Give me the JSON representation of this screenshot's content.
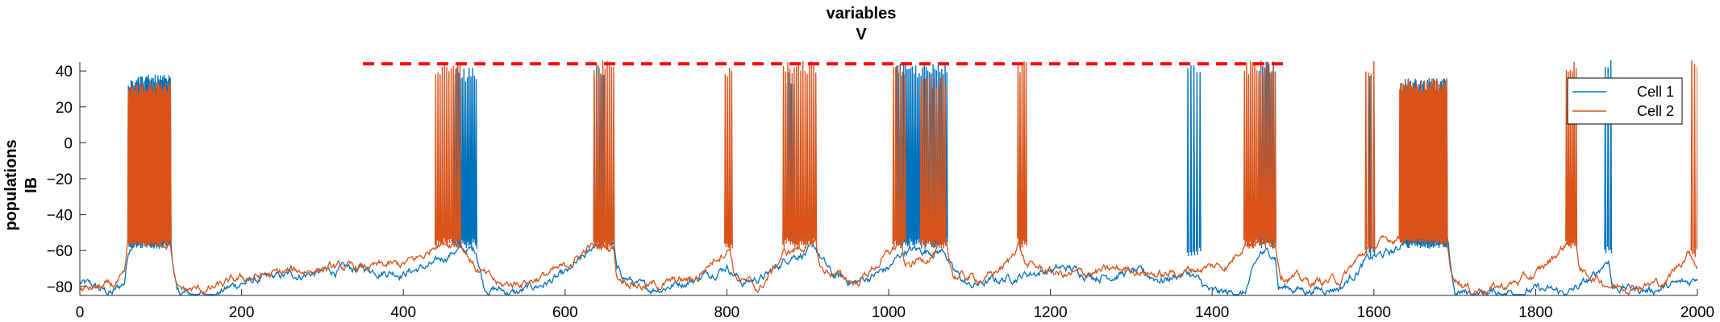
{
  "chart_data": {
    "type": "line",
    "title": [
      "variables",
      "V"
    ],
    "ylabel": [
      "populations",
      "IB"
    ],
    "xlabel": "",
    "xlim": [
      0,
      2000
    ],
    "ylim": [
      -85,
      45
    ],
    "xticks": [
      0,
      200,
      400,
      600,
      800,
      1000,
      1200,
      1400,
      1600,
      1800,
      2000
    ],
    "yticks": [
      -80,
      -60,
      -40,
      -20,
      0,
      20,
      40
    ],
    "grid": false,
    "legend_position": "top-right",
    "reference_line": {
      "style": "dashed",
      "color": "#ff0000",
      "x": [
        350,
        1490
      ],
      "y": 44
    },
    "series": [
      {
        "name": "Cell 1",
        "color": "#0072bd",
        "baseline": [
          [
            0,
            -78
          ],
          [
            40,
            -84
          ],
          [
            55,
            -78
          ],
          [
            60,
            -60
          ],
          [
            66,
            -54
          ],
          [
            112,
            -54
          ],
          [
            116,
            -70
          ],
          [
            120,
            -84
          ],
          [
            160,
            -85
          ],
          [
            200,
            -78
          ],
          [
            260,
            -74
          ],
          [
            300,
            -72
          ],
          [
            350,
            -70
          ],
          [
            400,
            -72
          ],
          [
            440,
            -68
          ],
          [
            462,
            -60
          ],
          [
            490,
            -60
          ],
          [
            500,
            -80
          ],
          [
            540,
            -84
          ],
          [
            600,
            -74
          ],
          [
            630,
            -62
          ],
          [
            638,
            -56
          ],
          [
            660,
            -56
          ],
          [
            664,
            -72
          ],
          [
            700,
            -82
          ],
          [
            760,
            -76
          ],
          [
            800,
            -68
          ],
          [
            820,
            -78
          ],
          [
            850,
            -74
          ],
          [
            880,
            -62
          ],
          [
            910,
            -60
          ],
          [
            930,
            -74
          ],
          [
            960,
            -78
          ],
          [
            1000,
            -70
          ],
          [
            1020,
            -60
          ],
          [
            1070,
            -60
          ],
          [
            1080,
            -72
          ],
          [
            1100,
            -80
          ],
          [
            1140,
            -76
          ],
          [
            1180,
            -72
          ],
          [
            1220,
            -70
          ],
          [
            1260,
            -74
          ],
          [
            1300,
            -72
          ],
          [
            1340,
            -76
          ],
          [
            1370,
            -72
          ],
          [
            1385,
            -78
          ],
          [
            1400,
            -84
          ],
          [
            1440,
            -84
          ],
          [
            1460,
            -62
          ],
          [
            1478,
            -62
          ],
          [
            1482,
            -80
          ],
          [
            1520,
            -82
          ],
          [
            1560,
            -80
          ],
          [
            1590,
            -66
          ],
          [
            1600,
            -64
          ],
          [
            1630,
            -60
          ],
          [
            1635,
            -54
          ],
          [
            1690,
            -54
          ],
          [
            1695,
            -70
          ],
          [
            1700,
            -84
          ],
          [
            1760,
            -83
          ],
          [
            1800,
            -82
          ],
          [
            1840,
            -84
          ],
          [
            1870,
            -76
          ],
          [
            1890,
            -64
          ],
          [
            1895,
            -80
          ],
          [
            1940,
            -82
          ],
          [
            1990,
            -78
          ],
          [
            2000,
            -74
          ]
        ],
        "bursts": [
          {
            "x": [
              60,
              112
            ],
            "n": 62,
            "top": 34,
            "bottom": -55
          },
          {
            "x": [
              462,
              490
            ],
            "n": 14,
            "top": 38,
            "bottom": -55
          },
          {
            "x": [
              636,
              648
            ],
            "n": 5,
            "top": 40,
            "bottom": -52
          },
          {
            "x": [
              873,
              886
            ],
            "n": 5,
            "top": 36,
            "bottom": -52
          },
          {
            "x": [
              1010,
              1072
            ],
            "n": 30,
            "top": 40,
            "bottom": -55
          },
          {
            "x": [
              1370,
              1385
            ],
            "n": 5,
            "top": 43,
            "bottom": -60
          },
          {
            "x": [
              1458,
              1478
            ],
            "n": 10,
            "top": 43,
            "bottom": -55
          },
          {
            "x": [
              1595,
              1600
            ],
            "n": 2,
            "top": 40,
            "bottom": -60
          },
          {
            "x": [
              1634,
              1690
            ],
            "n": 60,
            "top": 32,
            "bottom": -55
          },
          {
            "x": [
              1886,
              1893
            ],
            "n": 3,
            "top": 43,
            "bottom": -58
          }
        ]
      },
      {
        "name": "Cell 2",
        "color": "#d95319",
        "baseline": [
          [
            0,
            -82
          ],
          [
            40,
            -80
          ],
          [
            55,
            -76
          ],
          [
            60,
            -55
          ],
          [
            112,
            -55
          ],
          [
            116,
            -72
          ],
          [
            120,
            -82
          ],
          [
            160,
            -82
          ],
          [
            200,
            -76
          ],
          [
            260,
            -72
          ],
          [
            300,
            -70
          ],
          [
            350,
            -70
          ],
          [
            400,
            -68
          ],
          [
            430,
            -62
          ],
          [
            440,
            -55
          ],
          [
            470,
            -55
          ],
          [
            480,
            -62
          ],
          [
            490,
            -70
          ],
          [
            520,
            -80
          ],
          [
            560,
            -76
          ],
          [
            600,
            -70
          ],
          [
            630,
            -58
          ],
          [
            660,
            -58
          ],
          [
            664,
            -74
          ],
          [
            700,
            -80
          ],
          [
            760,
            -76
          ],
          [
            790,
            -62
          ],
          [
            804,
            -58
          ],
          [
            810,
            -74
          ],
          [
            840,
            -82
          ],
          [
            870,
            -62
          ],
          [
            910,
            -55
          ],
          [
            915,
            -70
          ],
          [
            960,
            -78
          ],
          [
            1000,
            -62
          ],
          [
            1015,
            -55
          ],
          [
            1020,
            -70
          ],
          [
            1060,
            -60
          ],
          [
            1070,
            -55
          ],
          [
            1080,
            -74
          ],
          [
            1120,
            -76
          ],
          [
            1150,
            -66
          ],
          [
            1160,
            -55
          ],
          [
            1170,
            -68
          ],
          [
            1220,
            -74
          ],
          [
            1260,
            -72
          ],
          [
            1300,
            -70
          ],
          [
            1340,
            -74
          ],
          [
            1380,
            -70
          ],
          [
            1420,
            -68
          ],
          [
            1440,
            -55
          ],
          [
            1478,
            -55
          ],
          [
            1485,
            -72
          ],
          [
            1520,
            -78
          ],
          [
            1560,
            -76
          ],
          [
            1590,
            -60
          ],
          [
            1600,
            -58
          ],
          [
            1630,
            -52
          ],
          [
            1690,
            -52
          ],
          [
            1695,
            -72
          ],
          [
            1720,
            -82
          ],
          [
            1760,
            -80
          ],
          [
            1800,
            -74
          ],
          [
            1830,
            -60
          ],
          [
            1840,
            -55
          ],
          [
            1850,
            -55
          ],
          [
            1855,
            -72
          ],
          [
            1900,
            -80
          ],
          [
            1960,
            -78
          ],
          [
            1990,
            -60
          ],
          [
            2000,
            -68
          ]
        ],
        "bursts": [
          {
            "x": [
              60,
              112
            ],
            "n": 62,
            "top": 30,
            "bottom": -54
          },
          {
            "x": [
              440,
              470
            ],
            "n": 12,
            "top": 42,
            "bottom": -55
          },
          {
            "x": [
              636,
              660
            ],
            "n": 10,
            "top": 42,
            "bottom": -56
          },
          {
            "x": [
              798,
              806
            ],
            "n": 4,
            "top": 38,
            "bottom": -58
          },
          {
            "x": [
              870,
              910
            ],
            "n": 16,
            "top": 42,
            "bottom": -55
          },
          {
            "x": [
              1006,
              1020
            ],
            "n": 6,
            "top": 40,
            "bottom": -55
          },
          {
            "x": [
              1040,
              1070
            ],
            "n": 12,
            "top": 34,
            "bottom": -55
          },
          {
            "x": [
              1160,
              1170
            ],
            "n": 5,
            "top": 42,
            "bottom": -55
          },
          {
            "x": [
              1440,
              1478
            ],
            "n": 16,
            "top": 42,
            "bottom": -55
          },
          {
            "x": [
              1590,
              1600
            ],
            "n": 4,
            "top": 42,
            "bottom": -58
          },
          {
            "x": [
              1632,
              1690
            ],
            "n": 58,
            "top": 32,
            "bottom": -53
          },
          {
            "x": [
              1838,
              1850
            ],
            "n": 6,
            "top": 42,
            "bottom": -55
          },
          {
            "x": [
              1993,
              2000
            ],
            "n": 3,
            "top": 42,
            "bottom": -60
          }
        ]
      }
    ]
  }
}
